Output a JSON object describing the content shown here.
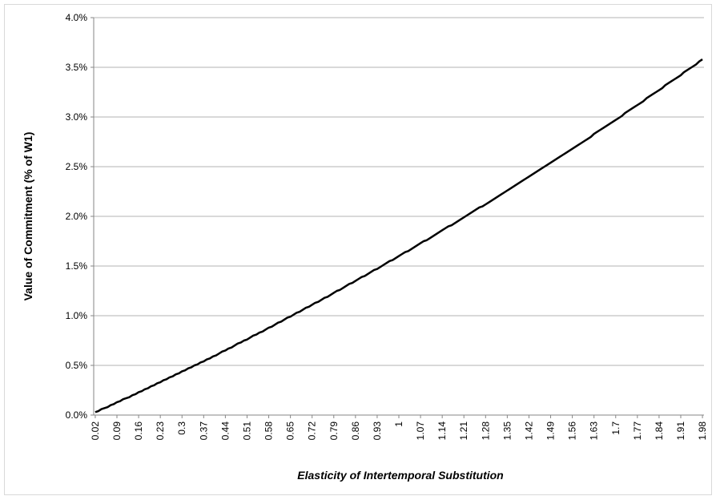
{
  "chart_data": {
    "type": "line",
    "x_label": "Elasticity of Intertemporal Substitution",
    "y_label": "Value of Commitment  (% of W1)",
    "categories": [
      "0.02",
      null,
      null,
      null,
      null,
      null,
      null,
      "0.09",
      null,
      null,
      null,
      null,
      null,
      null,
      "0.16",
      null,
      null,
      null,
      null,
      null,
      null,
      "0.23",
      null,
      null,
      null,
      null,
      null,
      null,
      "0.3",
      null,
      null,
      null,
      null,
      null,
      null,
      "0.37",
      null,
      null,
      null,
      null,
      null,
      null,
      "0.44",
      null,
      null,
      null,
      null,
      null,
      null,
      "0.51",
      null,
      null,
      null,
      null,
      null,
      null,
      "0.58",
      null,
      null,
      null,
      null,
      null,
      null,
      "0.65",
      null,
      null,
      null,
      null,
      null,
      null,
      "0.72",
      null,
      null,
      null,
      null,
      null,
      null,
      "0.79",
      null,
      null,
      null,
      null,
      null,
      null,
      "0.86",
      null,
      null,
      null,
      null,
      null,
      null,
      "0.93",
      null,
      null,
      null,
      null,
      null,
      null,
      "1",
      null,
      null,
      null,
      null,
      null,
      null,
      "1.07",
      null,
      null,
      null,
      null,
      null,
      null,
      "1.14",
      null,
      null,
      null,
      null,
      null,
      null,
      "1.21",
      null,
      null,
      null,
      null,
      null,
      null,
      "1.28",
      null,
      null,
      null,
      null,
      null,
      null,
      "1.35",
      null,
      null,
      null,
      null,
      null,
      null,
      "1.42",
      null,
      null,
      null,
      null,
      null,
      null,
      "1.49",
      null,
      null,
      null,
      null,
      null,
      null,
      "1.56",
      null,
      null,
      null,
      null,
      null,
      null,
      "1.63",
      null,
      null,
      null,
      null,
      null,
      null,
      "1.7",
      null,
      null,
      null,
      null,
      null,
      null,
      "1.77",
      null,
      null,
      null,
      null,
      null,
      null,
      "1.84",
      null,
      null,
      null,
      null,
      null,
      null,
      "1.91",
      null,
      null,
      null,
      null,
      null,
      null,
      "1.98"
    ],
    "series": [
      {
        "color": "#000000",
        "values": [
          0.03,
          0.04,
          0.06,
          0.07,
          0.08,
          0.1,
          0.11,
          0.13,
          0.14,
          0.16,
          0.17,
          0.18,
          0.2,
          0.21,
          0.23,
          0.24,
          0.26,
          0.27,
          0.29,
          0.3,
          0.32,
          0.33,
          0.35,
          0.36,
          0.38,
          0.39,
          0.41,
          0.42,
          0.44,
          0.45,
          0.47,
          0.48,
          0.5,
          0.51,
          0.53,
          0.54,
          0.56,
          0.57,
          0.59,
          0.6,
          0.62,
          0.64,
          0.65,
          0.67,
          0.68,
          0.7,
          0.72,
          0.73,
          0.75,
          0.76,
          0.78,
          0.8,
          0.81,
          0.83,
          0.84,
          0.86,
          0.88,
          0.89,
          0.91,
          0.93,
          0.94,
          0.96,
          0.98,
          0.99,
          1.01,
          1.03,
          1.04,
          1.06,
          1.08,
          1.09,
          1.11,
          1.13,
          1.14,
          1.16,
          1.18,
          1.19,
          1.21,
          1.23,
          1.25,
          1.26,
          1.28,
          1.3,
          1.32,
          1.33,
          1.35,
          1.37,
          1.39,
          1.4,
          1.42,
          1.44,
          1.46,
          1.47,
          1.49,
          1.51,
          1.53,
          1.55,
          1.56,
          1.58,
          1.6,
          1.62,
          1.64,
          1.65,
          1.67,
          1.69,
          1.71,
          1.73,
          1.75,
          1.76,
          1.78,
          1.8,
          1.82,
          1.84,
          1.86,
          1.88,
          1.9,
          1.91,
          1.93,
          1.95,
          1.97,
          1.99,
          2.01,
          2.03,
          2.05,
          2.07,
          2.09,
          2.1,
          2.12,
          2.14,
          2.16,
          2.18,
          2.2,
          2.22,
          2.24,
          2.26,
          2.28,
          2.3,
          2.32,
          2.34,
          2.36,
          2.38,
          2.4,
          2.42,
          2.44,
          2.46,
          2.48,
          2.5,
          2.52,
          2.54,
          2.56,
          2.58,
          2.6,
          2.62,
          2.64,
          2.66,
          2.68,
          2.7,
          2.72,
          2.74,
          2.76,
          2.78,
          2.8,
          2.83,
          2.85,
          2.87,
          2.89,
          2.91,
          2.93,
          2.95,
          2.97,
          2.99,
          3.01,
          3.04,
          3.06,
          3.08,
          3.1,
          3.12,
          3.14,
          3.16,
          3.19,
          3.21,
          3.23,
          3.25,
          3.27,
          3.29,
          3.32,
          3.34,
          3.36,
          3.38,
          3.4,
          3.42,
          3.45,
          3.47,
          3.49,
          3.51,
          3.53,
          3.56,
          3.58
        ]
      }
    ],
    "ylim": [
      0,
      4
    ],
    "yticks": [
      {
        "value": 0,
        "label": "0.0%"
      },
      {
        "value": 0.5,
        "label": "0.5%"
      },
      {
        "value": 1,
        "label": "1.0%"
      },
      {
        "value": 1.5,
        "label": "1.5%"
      },
      {
        "value": 2,
        "label": "2.0%"
      },
      {
        "value": 2.5,
        "label": "2.5%"
      },
      {
        "value": 3,
        "label": "3.0%"
      },
      {
        "value": 3.5,
        "label": "3.5%"
      },
      {
        "value": 4,
        "label": "4.0%"
      }
    ],
    "grid": true
  }
}
